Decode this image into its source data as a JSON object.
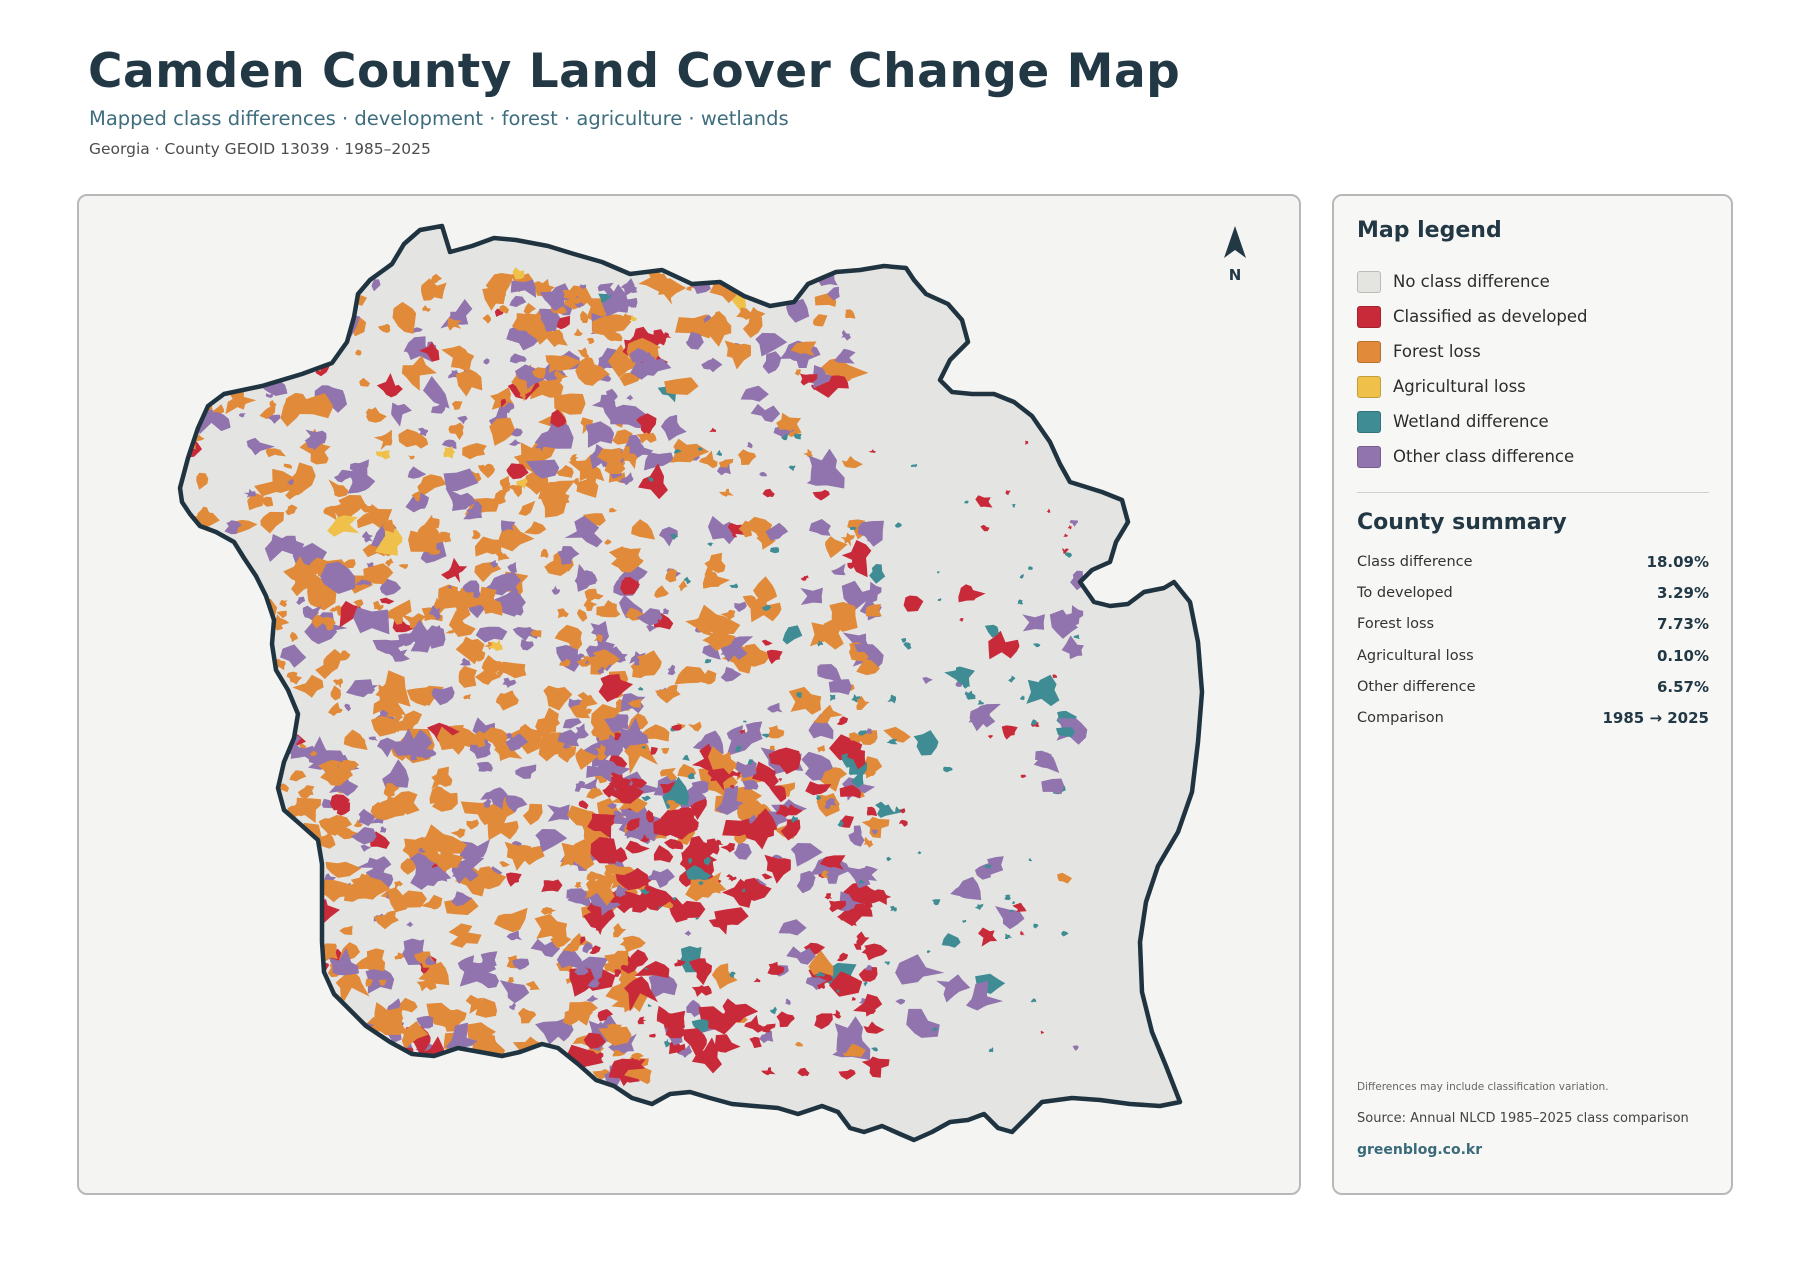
{
  "header": {
    "title": "Camden County Land Cover Change Map",
    "subtitle": "Mapped class differences · development · forest · agriculture · wetlands",
    "meta": "Georgia · County GEOID 13039 · 1985–2025"
  },
  "map": {
    "north_label": "N",
    "land_color": "#e4e5e2",
    "boundary_color": "#1f3440"
  },
  "legend": {
    "heading": "Map legend",
    "items": [
      {
        "label": "No class difference",
        "color": "#e4e4e1"
      },
      {
        "label": "Classified as developed",
        "color": "#c92a3a"
      },
      {
        "label": "Forest loss",
        "color": "#e08a3a"
      },
      {
        "label": "Agricultural loss",
        "color": "#efc14a"
      },
      {
        "label": "Wetland difference",
        "color": "#3f8c95"
      },
      {
        "label": "Other class difference",
        "color": "#9174ad"
      }
    ]
  },
  "summary": {
    "heading": "County summary",
    "rows": [
      {
        "label": "Class difference",
        "value": "18.09%"
      },
      {
        "label": "To developed",
        "value": "3.29%"
      },
      {
        "label": "Forest loss",
        "value": "7.73%"
      },
      {
        "label": "Agricultural loss",
        "value": "0.10%"
      },
      {
        "label": "Other difference",
        "value": "6.57%"
      },
      {
        "label": "Comparison",
        "value": "1985 → 2025"
      }
    ]
  },
  "footer": {
    "note": "Differences may include classification variation.",
    "source": "Source: Annual NLCD 1985–2025 class comparison",
    "site": "greenblog.co.kr"
  }
}
